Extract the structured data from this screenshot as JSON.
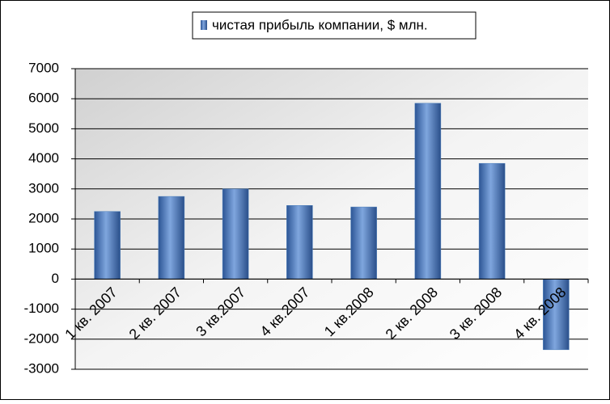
{
  "chart_data": {
    "type": "bar",
    "categories": [
      "1 кв. 2007",
      "2 кв. 2007",
      "3 кв.2007",
      "4 кв.2007",
      "1 кв.2008",
      "2 кв. 2008",
      "3 кв. 2008",
      "4 кв. 2008"
    ],
    "series": [
      {
        "name": "чистая прибыль компании, $ млн.",
        "color": "#4a7ebb",
        "values": [
          2250,
          2750,
          3000,
          2450,
          2400,
          5850,
          3850,
          -2350
        ]
      }
    ],
    "ylim": [
      -3000,
      7000
    ],
    "yticks": [
      -3000,
      -2000,
      -1000,
      0,
      1000,
      2000,
      3000,
      4000,
      5000,
      6000,
      7000
    ],
    "grid": true,
    "legend": "top"
  }
}
